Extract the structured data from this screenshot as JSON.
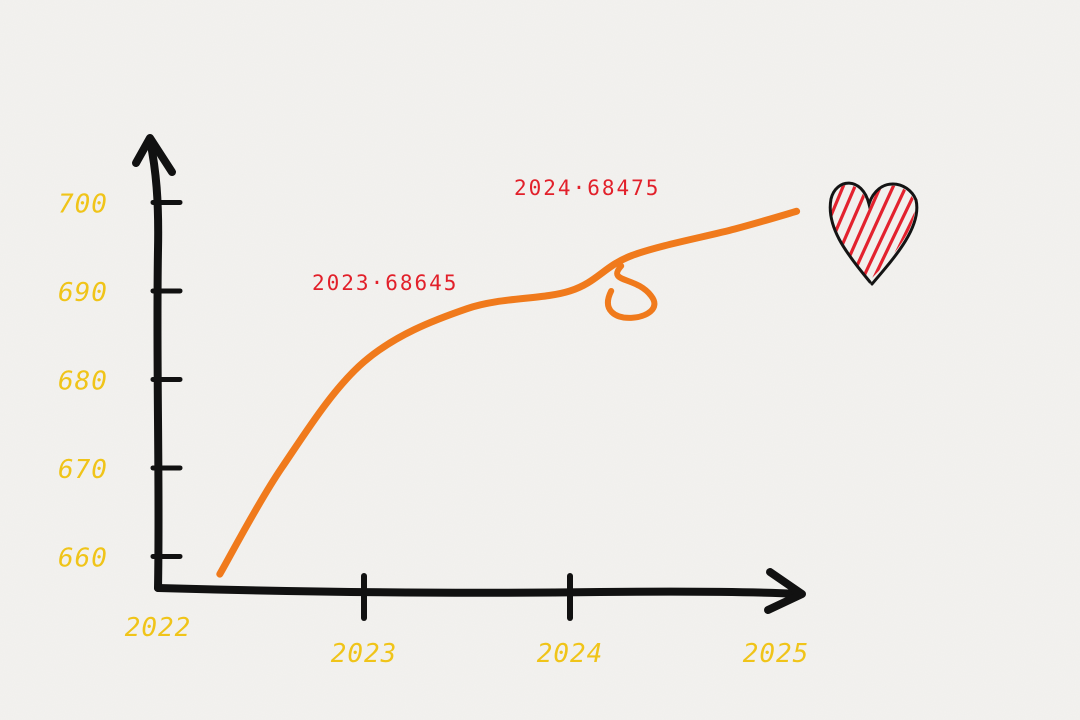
{
  "chart_data": {
    "type": "line",
    "title": "",
    "xlabel": "",
    "ylabel": "",
    "x_ticks": [
      "2022",
      "2023",
      "2024",
      "2025"
    ],
    "y_ticks": [
      "660",
      "670",
      "680",
      "690",
      "700"
    ],
    "ylim": [
      657,
      703
    ],
    "series": [
      {
        "points": [
          {
            "x": 2022.3,
            "y": 658
          },
          {
            "x": 2022.6,
            "y": 670
          },
          {
            "x": 2023.0,
            "y": 682
          },
          {
            "x": 2023.5,
            "y": 688
          },
          {
            "x": 2024.0,
            "y": 690
          },
          {
            "x": 2024.3,
            "y": 694
          },
          {
            "x": 2024.8,
            "y": 697
          },
          {
            "x": 2025.1,
            "y": 699
          }
        ]
      }
    ],
    "annotations": [
      {
        "text": "2023·68645",
        "x": 2023,
        "y": 686.45
      },
      {
        "text": "2024·68475",
        "x": 2024,
        "y": 684.75
      }
    ]
  },
  "colors": {
    "axis": "#111111",
    "line": "#f07a1c",
    "tick_label": "#f0c419",
    "annotation": "#e2202a",
    "heart": "#e3222e"
  },
  "decoration": {
    "icon": "heart-icon"
  }
}
